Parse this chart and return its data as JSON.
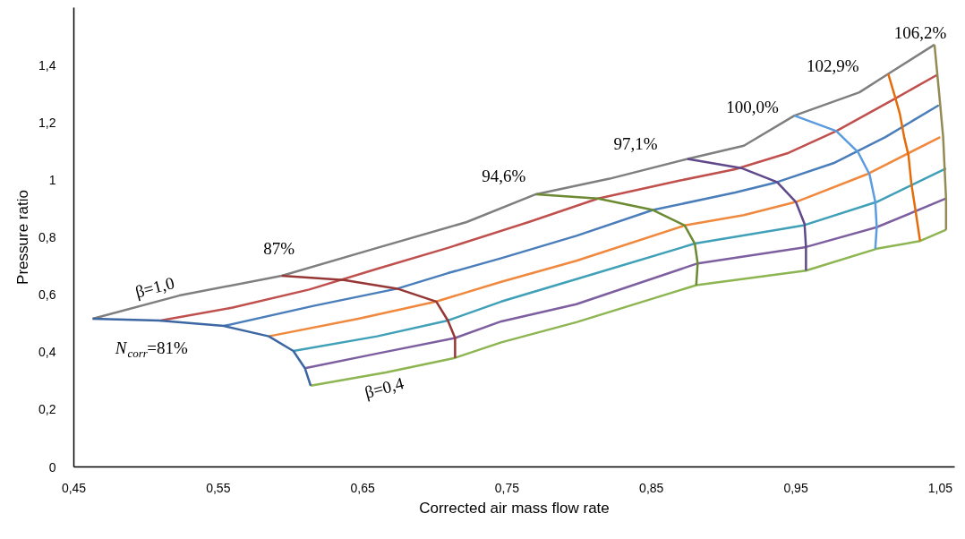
{
  "chart_data": {
    "type": "line",
    "xlabel": "Corrected air mass flow rate",
    "ylabel": "Pressure ratio",
    "xlim": [
      0.45,
      1.06
    ],
    "xticks": [
      {
        "value": 0.45,
        "label": "0,45"
      },
      {
        "value": 0.55,
        "label": "0,55"
      },
      {
        "value": 0.65,
        "label": "0,65"
      },
      {
        "value": 0.75,
        "label": "0,75"
      },
      {
        "value": 0.85,
        "label": "0,85"
      },
      {
        "value": 0.95,
        "label": "0,95"
      },
      {
        "value": 1.05,
        "label": "1,05"
      }
    ],
    "ylim": [
      0,
      1.6
    ],
    "yticks": [
      0,
      {
        "value": 0.2,
        "label": "0,2"
      },
      {
        "value": 0.4,
        "label": "0,4"
      },
      {
        "value": 0.6,
        "label": "0,6"
      },
      {
        "value": 0.8,
        "label": "0,8"
      },
      1,
      {
        "value": 1.2,
        "label": "1,2"
      },
      {
        "value": 1.4,
        "label": "1,4"
      }
    ],
    "grid": false,
    "marker": "none",
    "line_style": "solid",
    "series": [
      {
        "color": "#7f7f7f",
        "x": [
          0.463,
          0.523,
          0.594,
          0.66,
          0.722,
          0.77,
          0.821,
          0.875,
          0.914,
          0.949,
          0.994,
          1.014,
          1.046
        ],
        "values": [
          0.516,
          0.597,
          0.666,
          0.763,
          0.853,
          0.95,
          1.004,
          1.073,
          1.119,
          1.224,
          1.305,
          1.369,
          1.471
        ]
      },
      {
        "color": "#c0504d",
        "x": [
          0.51,
          0.56,
          0.613,
          0.66,
          0.709,
          0.765,
          0.813,
          0.87,
          0.908,
          0.945,
          0.978,
          1.019,
          1.048
        ],
        "values": [
          0.51,
          0.555,
          0.618,
          0.69,
          0.763,
          0.853,
          0.935,
          0.998,
          1.037,
          1.094,
          1.17,
          1.284,
          1.366
        ]
      },
      {
        "color": "#4a7ebb",
        "x": [
          0.554,
          0.616,
          0.674,
          0.709,
          0.746,
          0.798,
          0.851,
          0.908,
          0.937,
          0.976,
          1.012,
          1.049
        ],
        "values": [
          0.491,
          0.561,
          0.621,
          0.675,
          0.727,
          0.805,
          0.895,
          0.956,
          0.992,
          1.058,
          1.149,
          1.26
        ]
      },
      {
        "color": "#f0883e",
        "x": [
          0.585,
          0.647,
          0.701,
          0.746,
          0.798,
          0.873,
          0.914,
          0.95,
          0.999,
          1.05
        ],
        "values": [
          0.455,
          0.516,
          0.576,
          0.645,
          0.718,
          0.841,
          0.877,
          0.923,
          1.019,
          1.149
        ]
      },
      {
        "color": "#3fa0b8",
        "x": [
          0.602,
          0.66,
          0.709,
          0.746,
          0.798,
          0.88,
          0.955,
          1.006,
          1.054
        ],
        "values": [
          0.404,
          0.455,
          0.51,
          0.576,
          0.654,
          0.778,
          0.841,
          0.923,
          1.04
        ]
      },
      {
        "color": "#7d5fa0",
        "x": [
          0.61,
          0.66,
          0.714,
          0.746,
          0.798,
          0.882,
          0.957,
          1.006,
          1.054
        ],
        "values": [
          0.344,
          0.395,
          0.449,
          0.507,
          0.567,
          0.709,
          0.766,
          0.835,
          0.935
        ]
      },
      {
        "color": "#8db551",
        "x": [
          0.614,
          0.666,
          0.714,
          0.746,
          0.798,
          0.881,
          0.957,
          1.006,
          1.036,
          1.054
        ],
        "values": [
          0.283,
          0.329,
          0.38,
          0.434,
          0.504,
          0.633,
          0.684,
          0.76,
          0.787,
          0.826
        ]
      },
      {
        "color": "#3c67a3",
        "x": [
          0.463,
          0.509,
          0.554,
          0.585,
          0.602,
          0.61,
          0.614
        ],
        "values": [
          0.516,
          0.51,
          0.491,
          0.455,
          0.404,
          0.344,
          0.283
        ]
      },
      {
        "color": "#963735",
        "x": [
          0.594,
          0.637,
          0.674,
          0.701,
          0.709,
          0.714,
          0.714
        ],
        "values": [
          0.666,
          0.651,
          0.621,
          0.576,
          0.51,
          0.449,
          0.38
        ]
      },
      {
        "color": "#6b8a32",
        "x": [
          0.77,
          0.813,
          0.851,
          0.873,
          0.88,
          0.882,
          0.881
        ],
        "values": [
          0.95,
          0.935,
          0.895,
          0.841,
          0.778,
          0.709,
          0.633
        ]
      },
      {
        "color": "#60498a",
        "x": [
          0.875,
          0.913,
          0.937,
          0.95,
          0.956,
          0.957,
          0.957
        ],
        "values": [
          1.073,
          1.04,
          0.992,
          0.923,
          0.847,
          0.766,
          0.684
        ]
      },
      {
        "color": "#5b9be0",
        "x": [
          0.949,
          0.978,
          0.993,
          1.001,
          1.005,
          1.006,
          1.005
        ],
        "values": [
          1.224,
          1.17,
          1.097,
          1.019,
          0.923,
          0.835,
          0.76
        ]
      },
      {
        "color": "#e46c0a",
        "x": [
          1.014,
          1.019,
          1.022,
          1.025,
          1.028,
          1.03,
          1.033,
          1.036
        ],
        "values": [
          1.369,
          1.284,
          1.23,
          1.149,
          1.085,
          0.986,
          0.889,
          0.787
        ]
      },
      {
        "color": "#948a54",
        "x": [
          1.046,
          1.048,
          1.05,
          1.052,
          1.053,
          1.054,
          1.054
        ],
        "values": [
          1.471,
          1.366,
          1.26,
          1.149,
          1.04,
          0.935,
          0.826
        ]
      }
    ],
    "annotations": [
      {
        "text": "β=1,0",
        "x": 0.506,
        "y": 0.582
      },
      {
        "text": "N$_{corr}$=81%",
        "x": 0.463,
        "y": 0.516
      },
      {
        "text": "β=0,4",
        "x": 0.66,
        "y": 0.326
      },
      {
        "text": "87%",
        "x": 0.594,
        "y": 0.666
      },
      {
        "text": "94,6%",
        "x": 0.77,
        "y": 0.95
      },
      {
        "text": "97,1%",
        "x": 0.875,
        "y": 1.073
      },
      {
        "text": "100,0%",
        "x": 0.949,
        "y": 1.224
      },
      {
        "text": "102,9%",
        "x": 1.014,
        "y": 1.369
      },
      {
        "text": "106,2%",
        "x": 1.046,
        "y": 1.471
      }
    ]
  }
}
